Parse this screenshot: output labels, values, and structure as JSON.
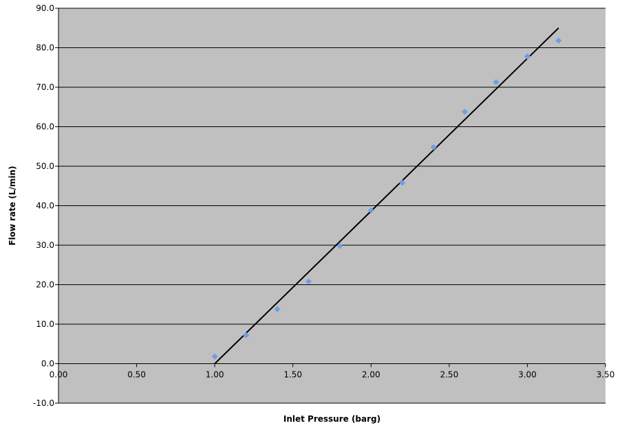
{
  "chart_data": {
    "type": "scatter",
    "title": "",
    "xlabel": "Inlet Pressure (barg)",
    "ylabel": "Flow rate (L/min)",
    "xlim": [
      0,
      3.5
    ],
    "ylim": [
      -10,
      90
    ],
    "x_ticks": [
      "0.00",
      "0.50",
      "1.00",
      "1.50",
      "2.00",
      "2.50",
      "3.00",
      "3.50"
    ],
    "y_ticks": [
      "-10.0",
      "0.0",
      "10.0",
      "20.0",
      "30.0",
      "40.0",
      "50.0",
      "60.0",
      "70.0",
      "80.0",
      "90.0"
    ],
    "grid": "horizontal",
    "legend": "none",
    "series": [
      {
        "color": "#6f9ee8",
        "marker": "diamond",
        "x": [
          1.0,
          1.2,
          1.4,
          1.6,
          1.8,
          2.0,
          2.2,
          2.4,
          2.6,
          2.8,
          3.0,
          3.2
        ],
        "y": [
          1.8,
          7.2,
          13.8,
          20.8,
          29.8,
          38.8,
          45.8,
          54.8,
          63.8,
          71.3,
          77.8,
          81.8
        ]
      }
    ],
    "trendline": {
      "color": "#000000",
      "x": [
        1.0,
        3.2
      ],
      "y": [
        0.0,
        85.0
      ]
    },
    "plot_background": "#c0c0c0"
  }
}
